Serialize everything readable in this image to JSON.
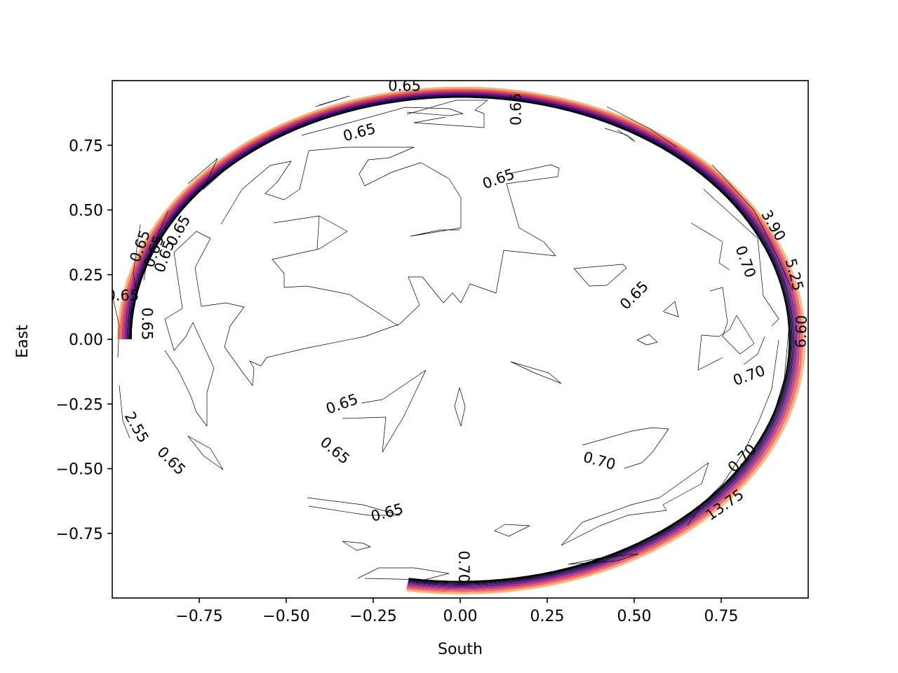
{
  "chart_data": {
    "type": "contour",
    "xlabel": "South",
    "ylabel": "East",
    "xlim": [
      -1.0,
      1.0
    ],
    "ylim": [
      -1.0,
      1.0
    ],
    "xticks": [
      -0.75,
      -0.5,
      -0.25,
      0.0,
      0.25,
      0.5,
      0.75
    ],
    "xtick_labels": [
      "−0.75",
      "−0.50",
      "−0.25",
      "0.00",
      "0.25",
      "0.50",
      "0.75"
    ],
    "yticks": [
      0.75,
      0.5,
      0.25,
      0.0,
      -0.25,
      -0.5,
      -0.75
    ],
    "ytick_labels": [
      "0.75",
      "0.50",
      "0.25",
      "0.00",
      "−0.25",
      "−0.50",
      "−0.75"
    ],
    "grid": false,
    "colormap": [
      "#000004",
      "#2c115f",
      "#721f81",
      "#b73779",
      "#f1605d",
      "#feb078"
    ],
    "contour_labels": [
      {
        "text": "0.65",
        "x": -0.16,
        "y": 0.98,
        "rotation": 0
      },
      {
        "text": "0.65",
        "x": 0.16,
        "y": 0.89,
        "rotation": -90
      },
      {
        "text": "0.65",
        "x": -0.29,
        "y": 0.8,
        "rotation": -15
      },
      {
        "text": "0.65",
        "x": 0.11,
        "y": 0.62,
        "rotation": -20
      },
      {
        "text": "0.65",
        "x": -0.81,
        "y": 0.42,
        "rotation": -60
      },
      {
        "text": "0.65",
        "x": -0.92,
        "y": 0.36,
        "rotation": -70
      },
      {
        "text": "0.65",
        "x": -0.88,
        "y": 0.34,
        "rotation": -70
      },
      {
        "text": "0.65",
        "x": -0.85,
        "y": 0.32,
        "rotation": -70
      },
      {
        "text": "0.65",
        "x": -0.97,
        "y": 0.17,
        "rotation": 0
      },
      {
        "text": "0.65",
        "x": -0.9,
        "y": 0.06,
        "rotation": 90
      },
      {
        "text": "0.65",
        "x": 0.5,
        "y": 0.17,
        "rotation": -45
      },
      {
        "text": "0.70",
        "x": 0.82,
        "y": 0.3,
        "rotation": 70
      },
      {
        "text": "3.90",
        "x": 0.9,
        "y": 0.44,
        "rotation": 60
      },
      {
        "text": "5.25",
        "x": 0.96,
        "y": 0.25,
        "rotation": 75
      },
      {
        "text": "6.60",
        "x": 0.98,
        "y": 0.03,
        "rotation": -88
      },
      {
        "text": "0.70",
        "x": 0.83,
        "y": -0.14,
        "rotation": -20
      },
      {
        "text": "0.65",
        "x": -0.34,
        "y": -0.25,
        "rotation": -20
      },
      {
        "text": "0.65",
        "x": -0.36,
        "y": -0.43,
        "rotation": 40
      },
      {
        "text": "2.55",
        "x": -0.93,
        "y": -0.34,
        "rotation": 60
      },
      {
        "text": "0.65",
        "x": -0.83,
        "y": -0.47,
        "rotation": 45
      },
      {
        "text": "0.70",
        "x": 0.4,
        "y": -0.47,
        "rotation": 15
      },
      {
        "text": "0.70",
        "x": 0.81,
        "y": -0.46,
        "rotation": -45
      },
      {
        "text": "13.75",
        "x": 0.76,
        "y": -0.64,
        "rotation": -35
      },
      {
        "text": "0.65",
        "x": -0.21,
        "y": -0.67,
        "rotation": -15
      },
      {
        "text": "0.70",
        "x": 0.01,
        "y": -0.88,
        "rotation": 90
      }
    ]
  }
}
